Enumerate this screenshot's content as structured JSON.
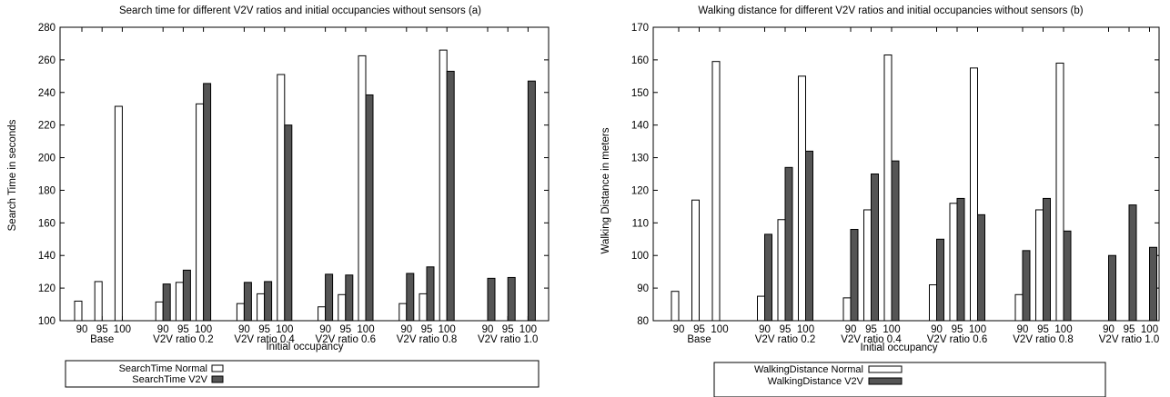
{
  "chart_data": [
    {
      "type": "bar",
      "title": "Search time for different V2V ratios and initial occupancies without sensors (a)",
      "xlabel": "Initial occupancy",
      "ylabel": "Search Time in seconds",
      "ylim": [
        100,
        280
      ],
      "yticks": [
        100,
        120,
        140,
        160,
        180,
        200,
        220,
        240,
        260,
        280
      ],
      "groups": [
        "Base",
        "V2V ratio 0.2",
        "V2V ratio 0.4",
        "V2V ratio 0.6",
        "V2V ratio 0.8",
        "V2V ratio 1.0"
      ],
      "subcategories": [
        "90",
        "95",
        "100"
      ],
      "series": [
        {
          "name": "SearchTime Normal",
          "color": "#ffffff",
          "values": [
            [
              112,
              124,
              231.5
            ],
            [
              111.5,
              123.5,
              233
            ],
            [
              110.5,
              116.5,
              251
            ],
            [
              108.5,
              116,
              262.5
            ],
            [
              110.5,
              116.5,
              266
            ],
            [
              null,
              null,
              null
            ]
          ]
        },
        {
          "name": "SearchTime V2V",
          "color": "#555555",
          "values": [
            [
              null,
              null,
              null
            ],
            [
              122.5,
              131,
              245.5
            ],
            [
              123.5,
              124,
              220
            ],
            [
              128.5,
              128,
              238.5
            ],
            [
              129,
              133,
              253
            ],
            [
              126,
              126.5,
              247
            ]
          ]
        }
      ],
      "legend": "bottom"
    },
    {
      "type": "bar",
      "title": "Walking distance for different V2V ratios and initial occupancies without sensors (b)",
      "xlabel": "Initial occupancy",
      "ylabel": "Walking Distance in meters",
      "ylim": [
        80,
        170
      ],
      "yticks": [
        80,
        90,
        100,
        110,
        120,
        130,
        140,
        150,
        160,
        170
      ],
      "groups": [
        "Base",
        "V2V ratio 0.2",
        "V2V ratio 0.4",
        "V2V ratio 0.6",
        "V2V ratio 0.8",
        "V2V ratio 1.0"
      ],
      "subcategories": [
        "90",
        "95",
        "100"
      ],
      "series": [
        {
          "name": "WalkingDistance Normal",
          "color": "#ffffff",
          "values": [
            [
              89,
              117,
              159.5
            ],
            [
              87.5,
              111,
              155
            ],
            [
              87,
              114,
              161.5
            ],
            [
              91,
              116,
              157.5
            ],
            [
              88,
              114,
              159
            ],
            [
              null,
              null,
              null
            ]
          ]
        },
        {
          "name": "WalkingDistance V2V",
          "color": "#555555",
          "values": [
            [
              null,
              null,
              null
            ],
            [
              106.5,
              127,
              132
            ],
            [
              108,
              125,
              129
            ],
            [
              105,
              117.5,
              112.5
            ],
            [
              101.5,
              117.5,
              107.5
            ],
            [
              100,
              115.5,
              102.5
            ]
          ]
        }
      ],
      "legend": "bottom"
    }
  ]
}
